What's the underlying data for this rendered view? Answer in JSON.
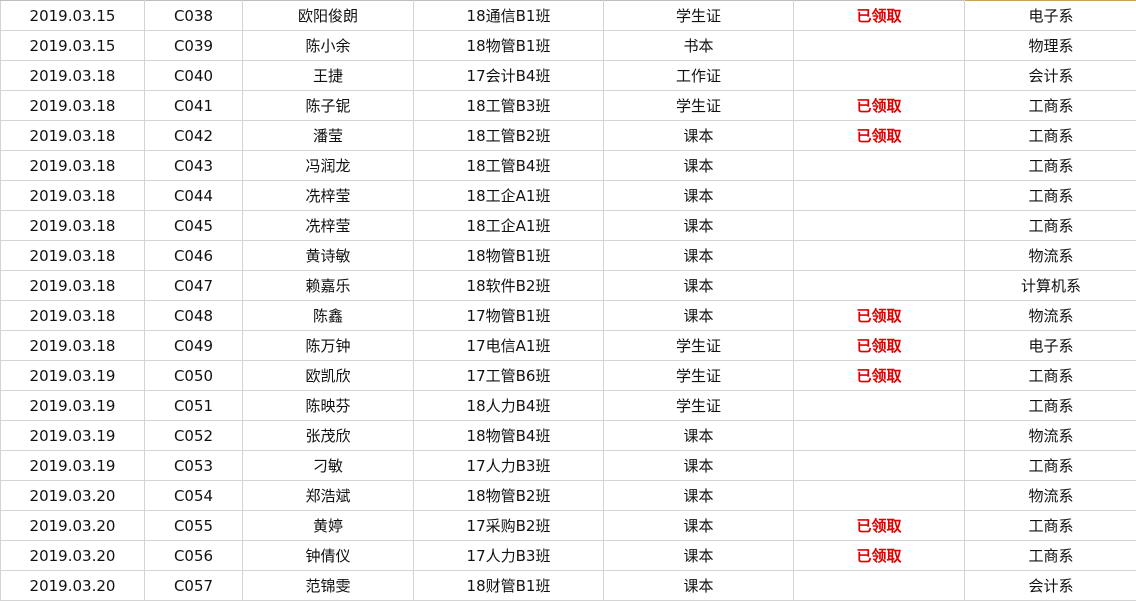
{
  "rows": [
    {
      "date": "2019.03.15",
      "id": "C038",
      "name": "欧阳俊朗",
      "class": "18通信B1班",
      "item": "学生证",
      "status": "已领取",
      "dept": "电子系"
    },
    {
      "date": "2019.03.15",
      "id": "C039",
      "name": "陈小余",
      "class": "18物管B1班",
      "item": "书本",
      "status": "",
      "dept": "物理系"
    },
    {
      "date": "2019.03.18",
      "id": "C040",
      "name": "王捷",
      "class": "17会计B4班",
      "item": "工作证",
      "status": "",
      "dept": "会计系"
    },
    {
      "date": "2019.03.18",
      "id": "C041",
      "name": "陈子铌",
      "class": "18工管B3班",
      "item": "学生证",
      "status": "已领取",
      "dept": "工商系"
    },
    {
      "date": "2019.03.18",
      "id": "C042",
      "name": "潘莹",
      "class": "18工管B2班",
      "item": "课本",
      "status": "已领取",
      "dept": "工商系"
    },
    {
      "date": "2019.03.18",
      "id": "C043",
      "name": "冯润龙",
      "class": "18工管B4班",
      "item": "课本",
      "status": "",
      "dept": "工商系"
    },
    {
      "date": "2019.03.18",
      "id": "C044",
      "name": "冼梓莹",
      "class": "18工企A1班",
      "item": "课本",
      "status": "",
      "dept": "工商系"
    },
    {
      "date": "2019.03.18",
      "id": "C045",
      "name": "冼梓莹",
      "class": "18工企A1班",
      "item": "课本",
      "status": "",
      "dept": "工商系"
    },
    {
      "date": "2019.03.18",
      "id": "C046",
      "name": "黄诗敏",
      "class": "18物管B1班",
      "item": "课本",
      "status": "",
      "dept": "物流系"
    },
    {
      "date": "2019.03.18",
      "id": "C047",
      "name": "赖嘉乐",
      "class": "18软件B2班",
      "item": "课本",
      "status": "",
      "dept": "计算机系"
    },
    {
      "date": "2019.03.18",
      "id": "C048",
      "name": "陈鑫",
      "class": "17物管B1班",
      "item": "课本",
      "status": "已领取",
      "dept": "物流系"
    },
    {
      "date": "2019.03.18",
      "id": "C049",
      "name": "陈万钟",
      "class": "17电信A1班",
      "item": "学生证",
      "status": "已领取",
      "dept": "电子系"
    },
    {
      "date": "2019.03.19",
      "id": "C050",
      "name": "欧凯欣",
      "class": "17工管B6班",
      "item": "学生证",
      "status": "已领取",
      "dept": "工商系"
    },
    {
      "date": "2019.03.19",
      "id": "C051",
      "name": "陈映芬",
      "class": "18人力B4班",
      "item": "学生证",
      "status": "",
      "dept": "工商系"
    },
    {
      "date": "2019.03.19",
      "id": "C052",
      "name": "张茂欣",
      "class": "18物管B4班",
      "item": "课本",
      "status": "",
      "dept": "物流系"
    },
    {
      "date": "2019.03.19",
      "id": "C053",
      "name": "刁敏",
      "class": "17人力B3班",
      "item": "课本",
      "status": "",
      "dept": "工商系"
    },
    {
      "date": "2019.03.20",
      "id": "C054",
      "name": "郑浩斌",
      "class": "18物管B2班",
      "item": "课本",
      "status": "",
      "dept": "物流系"
    },
    {
      "date": "2019.03.20",
      "id": "C055",
      "name": "黄婷",
      "class": "17采购B2班",
      "item": "课本",
      "status": "已领取",
      "dept": "工商系"
    },
    {
      "date": "2019.03.20",
      "id": "C056",
      "name": "钟倩仪",
      "class": "17人力B3班",
      "item": "课本",
      "status": "已领取",
      "dept": "工商系"
    },
    {
      "date": "2019.03.20",
      "id": "C057",
      "name": "范锦雯",
      "class": "18财管B1班",
      "item": "课本",
      "status": "",
      "dept": "会计系"
    }
  ],
  "colors": {
    "status": "#e00000",
    "grid": "#d4d4d4"
  }
}
